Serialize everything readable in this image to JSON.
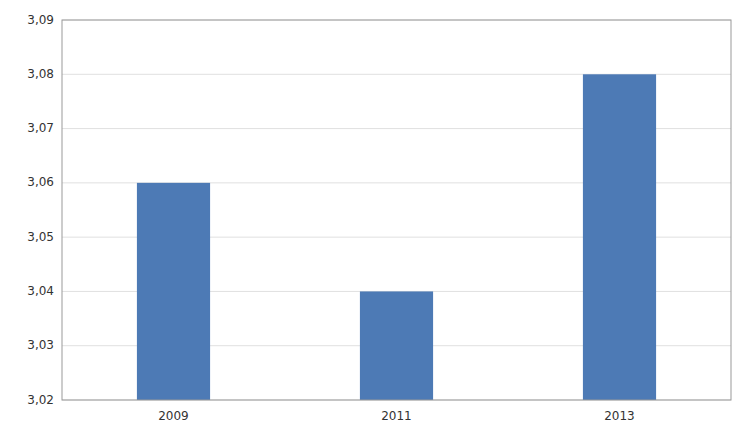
{
  "chart_data": {
    "type": "bar",
    "categories": [
      "2009",
      "2011",
      "2013"
    ],
    "values": [
      3.06,
      3.04,
      3.08
    ],
    "color": "#4d7ab5",
    "ylim": [
      3.02,
      3.09
    ],
    "yticks": [
      {
        "value": 3.02,
        "label": "3,02"
      },
      {
        "value": 3.03,
        "label": "3,03"
      },
      {
        "value": 3.04,
        "label": "3,04"
      },
      {
        "value": 3.05,
        "label": "3,05"
      },
      {
        "value": 3.06,
        "label": "3,06"
      },
      {
        "value": 3.07,
        "label": "3,07"
      },
      {
        "value": 3.08,
        "label": "3,08"
      },
      {
        "value": 3.09,
        "label": "3,09"
      }
    ],
    "grid": true
  }
}
